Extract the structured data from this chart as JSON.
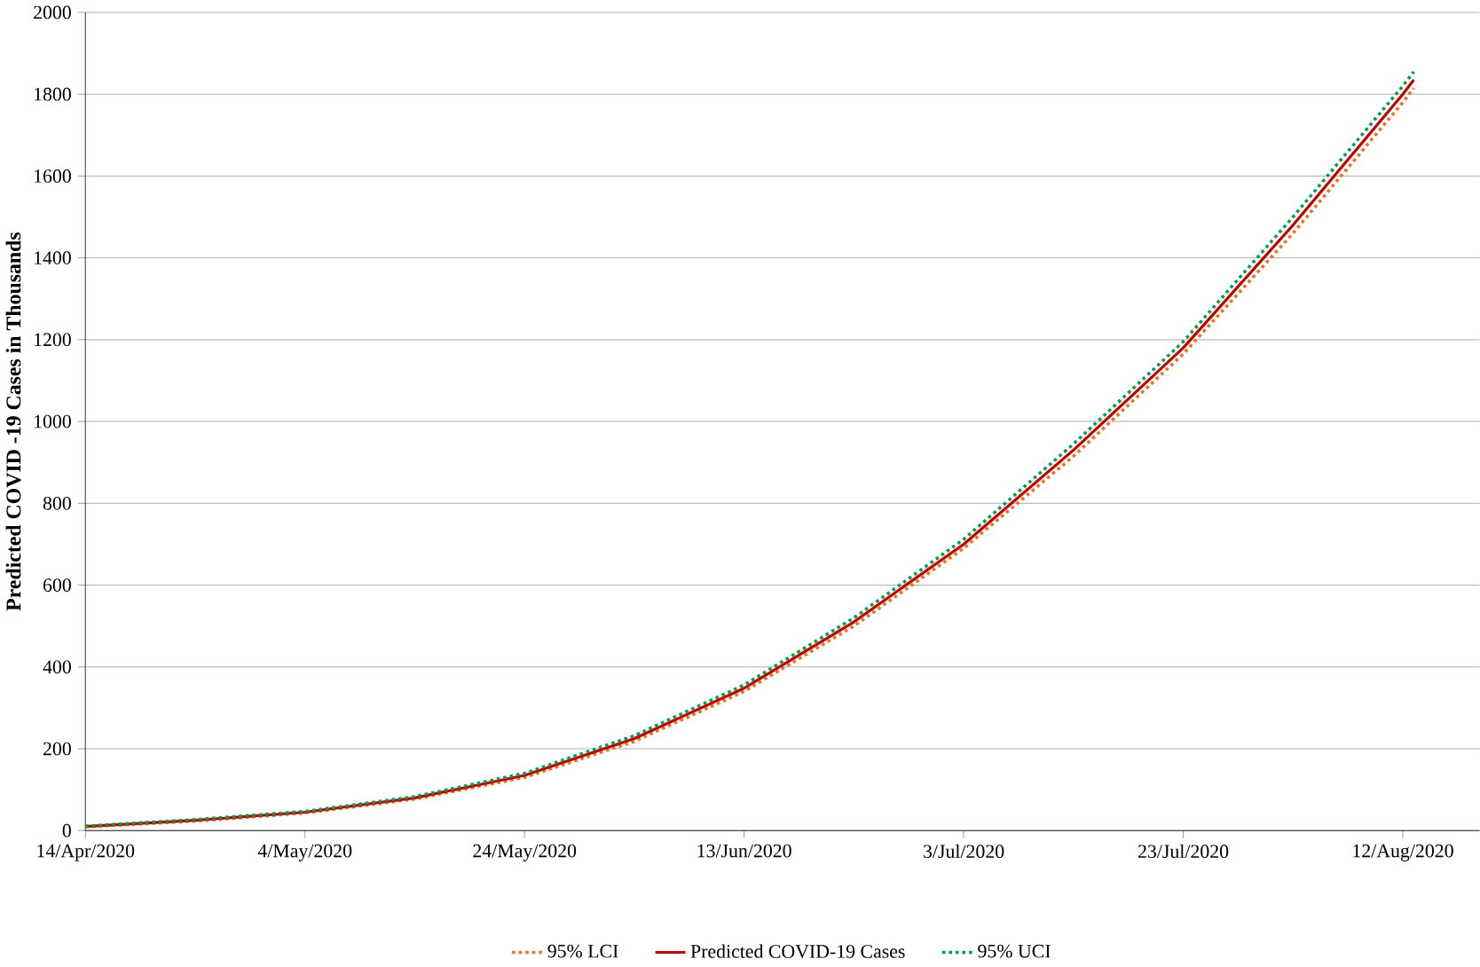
{
  "chart_data": {
    "type": "line",
    "ylabel": "Predicted COVID -19 Cases in Thousands",
    "x": [
      "2020-04-14",
      "2020-04-24",
      "2020-05-04",
      "2020-05-14",
      "2020-05-24",
      "2020-06-03",
      "2020-06-13",
      "2020-06-23",
      "2020-07-03",
      "2020-07-13",
      "2020-07-23",
      "2020-08-02",
      "2020-08-12",
      "2020-08-13"
    ],
    "series": [
      {
        "name": "95% LCI",
        "color": "#f07020",
        "line_style": "dotted",
        "values": [
          9,
          23,
          43,
          77,
          130,
          218,
          340,
          500,
          690,
          915,
          1165,
          1460,
          1780,
          1815
        ]
      },
      {
        "name": "Predicted COVID-19 Cases",
        "color": "#c00000",
        "line_style": "solid",
        "values": [
          10,
          25,
          45,
          80,
          135,
          225,
          348,
          510,
          700,
          930,
          1180,
          1480,
          1800,
          1835
        ]
      },
      {
        "name": "95% UCI",
        "color": "#00a050",
        "line_style": "dotted",
        "values": [
          11,
          27,
          47,
          83,
          140,
          232,
          356,
          520,
          712,
          945,
          1195,
          1500,
          1820,
          1855
        ]
      }
    ],
    "xlim": [
      "2020-04-14",
      "2020-08-19"
    ],
    "xticks": [
      {
        "value": "2020-04-14",
        "label": "14/Apr/2020"
      },
      {
        "value": "2020-05-04",
        "label": "4/May/2020"
      },
      {
        "value": "2020-05-24",
        "label": "24/May/2020"
      },
      {
        "value": "2020-06-13",
        "label": "13/Jun/2020"
      },
      {
        "value": "2020-07-03",
        "label": "3/Jul/2020"
      },
      {
        "value": "2020-07-23",
        "label": "23/Jul/2020"
      },
      {
        "value": "2020-08-12",
        "label": "12/Aug/2020"
      }
    ],
    "ylim": [
      0,
      2000
    ],
    "yticks": [
      0,
      200,
      400,
      600,
      800,
      1000,
      1200,
      1400,
      1600,
      1800,
      2000
    ],
    "grid": "y",
    "legend": "bottom",
    "marker": "none"
  }
}
